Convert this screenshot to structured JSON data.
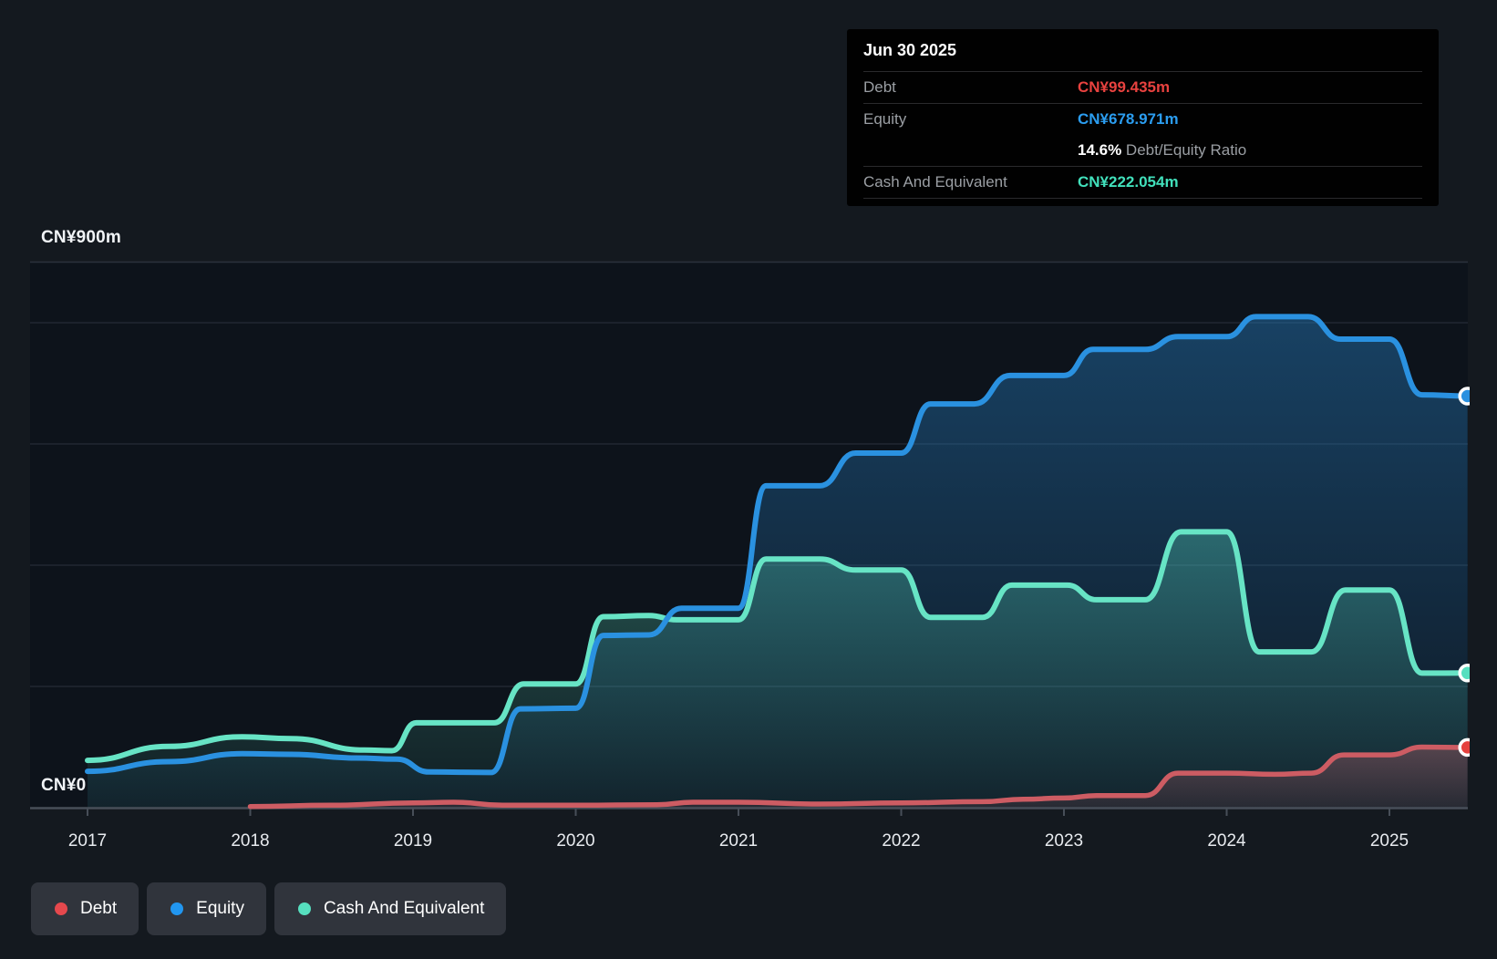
{
  "y_axis": {
    "top_label": "CN¥900m",
    "bottom_label": "CN¥0"
  },
  "x_axis": {
    "years": [
      "2017",
      "2018",
      "2019",
      "2020",
      "2021",
      "2022",
      "2023",
      "2024",
      "2025"
    ]
  },
  "tooltip": {
    "date": "Jun 30 2025",
    "debt_label": "Debt",
    "debt_value": "CN¥99.435m",
    "equity_label": "Equity",
    "equity_value": "CN¥678.971m",
    "ratio_value": "14.6%",
    "ratio_label": " Debt/Equity Ratio",
    "cash_label": "Cash And Equivalent",
    "cash_value": "CN¥222.054m"
  },
  "legend": {
    "items": [
      {
        "label": "Debt",
        "color": "#e5484d"
      },
      {
        "label": "Equity",
        "color": "#2196f0"
      },
      {
        "label": "Cash And Equivalent",
        "color": "#56dfbf"
      }
    ]
  },
  "chart_data": {
    "type": "area",
    "y_unit": "CN¥ millions",
    "ylim": [
      0,
      900
    ],
    "x_range": [
      2016.65,
      2025.48
    ],
    "gridline_values_m": [
      900,
      800,
      600,
      400,
      200
    ],
    "tooltip_point": {
      "date": "Jun 30 2025",
      "debt": 99.435,
      "equity": 678.971,
      "cash": 222.054,
      "debt_equity_ratio_pct": 14.6
    },
    "series": [
      {
        "name": "Equity",
        "color": "#2a91e0",
        "dot_color": "#2a91e0",
        "fill_rgb": "39,130,200",
        "points": [
          [
            2017.0,
            60
          ],
          [
            2017.5,
            76
          ],
          [
            2017.95,
            89
          ],
          [
            2018.25,
            88
          ],
          [
            2018.65,
            82
          ],
          [
            2018.9,
            80
          ],
          [
            2019.1,
            59
          ],
          [
            2019.48,
            58
          ],
          [
            2019.66,
            163
          ],
          [
            2020.0,
            164
          ],
          [
            2020.17,
            284
          ],
          [
            2020.45,
            285
          ],
          [
            2020.65,
            329
          ],
          [
            2021.0,
            329
          ],
          [
            2021.17,
            531
          ],
          [
            2021.5,
            531
          ],
          [
            2021.72,
            585
          ],
          [
            2022.0,
            585
          ],
          [
            2022.18,
            666
          ],
          [
            2022.45,
            666
          ],
          [
            2022.67,
            713
          ],
          [
            2023.0,
            713
          ],
          [
            2023.18,
            756
          ],
          [
            2023.5,
            756
          ],
          [
            2023.7,
            777
          ],
          [
            2024.0,
            777
          ],
          [
            2024.18,
            810
          ],
          [
            2024.5,
            810
          ],
          [
            2024.7,
            773
          ],
          [
            2025.0,
            773
          ],
          [
            2025.2,
            681
          ],
          [
            2025.48,
            678.971
          ]
        ]
      },
      {
        "name": "Cash And Equivalent",
        "color": "#67e4c5",
        "dot_color": "#56dfbf",
        "fill_rgb": "90,224,192",
        "points": [
          [
            2017.0,
            78
          ],
          [
            2017.5,
            101
          ],
          [
            2017.95,
            117
          ],
          [
            2018.25,
            114
          ],
          [
            2018.7,
            95
          ],
          [
            2018.87,
            94
          ],
          [
            2019.02,
            140
          ],
          [
            2019.5,
            140
          ],
          [
            2019.68,
            204
          ],
          [
            2020.0,
            204
          ],
          [
            2020.17,
            315
          ],
          [
            2020.45,
            317
          ],
          [
            2020.62,
            310
          ],
          [
            2021.0,
            310
          ],
          [
            2021.17,
            410
          ],
          [
            2021.5,
            410
          ],
          [
            2021.72,
            392
          ],
          [
            2022.0,
            392
          ],
          [
            2022.18,
            314
          ],
          [
            2022.5,
            314
          ],
          [
            2022.68,
            367
          ],
          [
            2023.02,
            367
          ],
          [
            2023.2,
            343
          ],
          [
            2023.5,
            343
          ],
          [
            2023.72,
            455
          ],
          [
            2024.0,
            455
          ],
          [
            2024.2,
            257
          ],
          [
            2024.52,
            257
          ],
          [
            2024.73,
            359
          ],
          [
            2025.0,
            359
          ],
          [
            2025.2,
            222
          ],
          [
            2025.48,
            222.054
          ]
        ]
      },
      {
        "name": "Debt",
        "color": "#cd5c63",
        "dot_color": "#e5413e",
        "fill_rgb": "225,105,115",
        "points": [
          [
            2018.0,
            2
          ],
          [
            2018.5,
            4
          ],
          [
            2019.0,
            8
          ],
          [
            2019.25,
            9
          ],
          [
            2019.55,
            4
          ],
          [
            2020.0,
            4
          ],
          [
            2020.5,
            5
          ],
          [
            2020.72,
            9
          ],
          [
            2021.0,
            9
          ],
          [
            2021.5,
            6
          ],
          [
            2022.0,
            8
          ],
          [
            2022.5,
            10
          ],
          [
            2022.75,
            14
          ],
          [
            2023.0,
            16
          ],
          [
            2023.2,
            20
          ],
          [
            2023.5,
            20
          ],
          [
            2023.7,
            57
          ],
          [
            2024.0,
            57
          ],
          [
            2024.3,
            55
          ],
          [
            2024.52,
            57
          ],
          [
            2024.72,
            87
          ],
          [
            2025.0,
            87
          ],
          [
            2025.2,
            100
          ],
          [
            2025.48,
            99.435
          ]
        ]
      }
    ]
  }
}
